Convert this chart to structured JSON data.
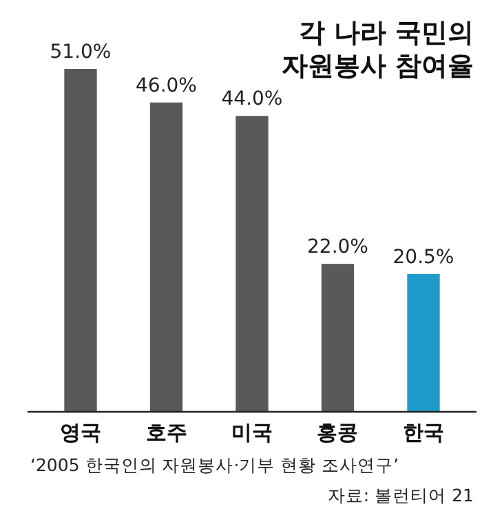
{
  "chart_data": {
    "type": "bar",
    "title": "각 나라 국민의\n자원봉사 참여율",
    "categories": [
      "영국",
      "호주",
      "미국",
      "홍콩",
      "한국"
    ],
    "values": [
      51.0,
      46.0,
      44.0,
      22.0,
      20.5
    ],
    "value_labels": [
      "51.0%",
      "46.0%",
      "44.0%",
      "22.0%",
      "20.5%"
    ],
    "colors": [
      "#58595b",
      "#58595b",
      "#58595b",
      "#58595b",
      "#1e9bcb"
    ],
    "annotations": [
      "‘2005 한국인의 자원봉사·기부 현황 조사연구’",
      "자료: 볼런티어 21"
    ]
  }
}
